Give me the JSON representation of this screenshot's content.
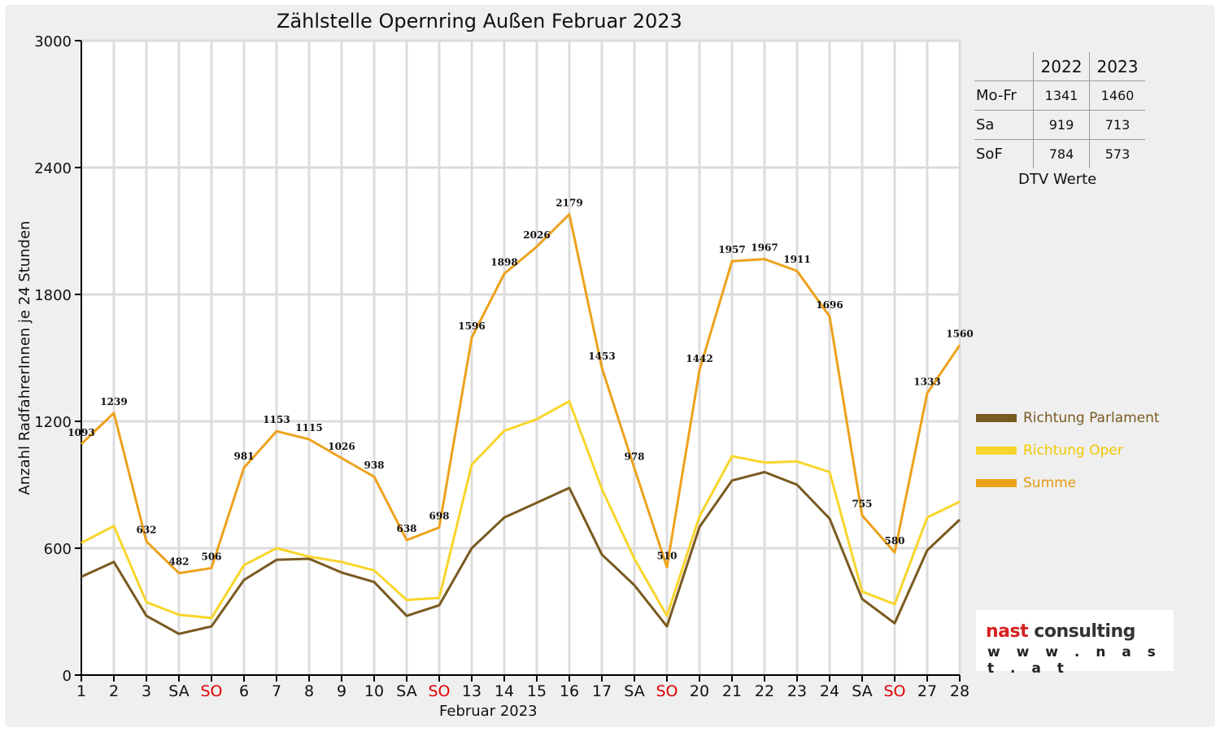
{
  "chart_data": {
    "type": "line",
    "title": "Zählstelle Opernring Außen Februar 2023",
    "xlabel": "Februar 2023",
    "ylabel": "Anzahl RadfahrerInnen je 24 Stunden",
    "ylim": [
      0,
      3000
    ],
    "yticks": [
      "0",
      "600",
      "1200",
      "1800",
      "2400",
      "3000"
    ],
    "categories": [
      "1",
      "2",
      "3",
      "SA",
      "SO",
      "6",
      "7",
      "8",
      "9",
      "10",
      "SA",
      "SO",
      "13",
      "14",
      "15",
      "16",
      "17",
      "SA",
      "SO",
      "20",
      "21",
      "22",
      "23",
      "24",
      "SA",
      "SO",
      "27",
      "28"
    ],
    "weekend_sunday_label": "SO",
    "grid": true,
    "legend_position": "right",
    "series": [
      {
        "name": "Richtung Parlament",
        "color": "#7a5a20",
        "values": [
          465,
          535,
          280,
          195,
          230,
          450,
          545,
          550,
          485,
          440,
          280,
          330,
          600,
          745,
          815,
          885,
          570,
          425,
          230,
          700,
          920,
          960,
          900,
          740,
          360,
          245,
          590,
          735
        ]
      },
      {
        "name": "Richtung Oper",
        "color": "#f8d52b",
        "values": [
          625,
          705,
          345,
          285,
          270,
          520,
          600,
          560,
          535,
          495,
          355,
          365,
          995,
          1155,
          1210,
          1295,
          880,
          550,
          280,
          750,
          1035,
          1005,
          1010,
          960,
          395,
          335,
          745,
          820
        ]
      },
      {
        "name": "Summe",
        "color": "#eda21c",
        "values": [
          1093,
          1239,
          632,
          482,
          506,
          981,
          1153,
          1115,
          1026,
          938,
          638,
          698,
          1596,
          1898,
          2026,
          2179,
          1453,
          978,
          510,
          1442,
          1957,
          1967,
          1911,
          1696,
          755,
          580,
          1333,
          1560
        ]
      }
    ],
    "data_labels": [
      "1093",
      "1239",
      "632",
      "482",
      "506",
      "981",
      "1153",
      "1115",
      "1026",
      "938",
      "638",
      "698",
      "1596",
      "1898",
      "2026",
      "2179",
      "1453",
      "978",
      "510",
      "1442",
      "1957",
      "1967",
      "1911",
      "1696",
      "755",
      "580",
      "1333",
      "1560"
    ]
  },
  "dtv_table": {
    "headers": [
      "",
      "2022",
      "2023"
    ],
    "rows": [
      {
        "label": "Mo-Fr",
        "v2022": "1341",
        "v2023": "1460"
      },
      {
        "label": "Sa",
        "v2022": "919",
        "v2023": "713"
      },
      {
        "label": "SoF",
        "v2022": "784",
        "v2023": "573"
      }
    ],
    "caption": "DTV Werte"
  },
  "logo": {
    "name_part1": "nast",
    "name_part2": "consulting",
    "url": "w w w . n a s t . a t",
    "color_accent": "#d62020",
    "color_dark": "#333333"
  },
  "colors": {
    "sunday_label": "#e00000",
    "grid": "#dcdcdc",
    "background": "#efefef"
  }
}
